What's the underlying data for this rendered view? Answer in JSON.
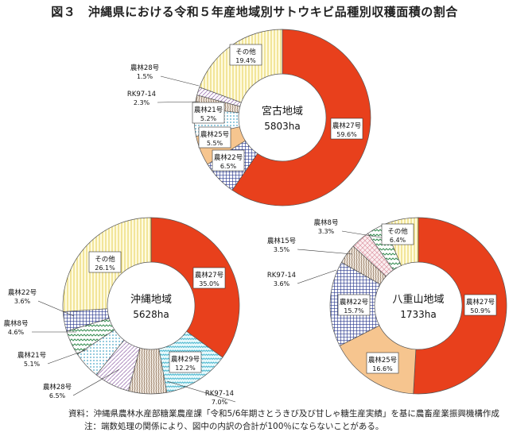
{
  "title": "図３　沖縄県における令和５年産地域別サトウキビ品種別収穫面積の割合",
  "notes": [
    "資料：沖縄県農林水産部糖業農産課「令和5/6年期さとうきび及び甘しゃ糖生産実績」を基に農畜産業振興機構作成",
    "注：端数処理の関係により、図中の内訳の合計が100％にならないことがある。"
  ],
  "colors": {
    "農林27号": "#e8401c",
    "農林22号": "#2b3a8f",
    "農林25号": "#f6c58f",
    "農林29号": "#5bc3d6",
    "農林21号": "#9fd3e6",
    "農林8号": "#3a8f55",
    "農林28号": "#b08ac0",
    "農林15号": "#e3a3ad",
    "RK97-14": "#a58b74",
    "その他": "#f3e27a"
  },
  "chart_data": [
    {
      "type": "pie",
      "donut": true,
      "region": "宮古地域",
      "area": "5803ha",
      "slices": [
        {
          "label": "農林27号",
          "pct": "59.6%",
          "value": 59.6
        },
        {
          "label": "農林22号",
          "pct": "6.5%",
          "value": 6.5
        },
        {
          "label": "農林25号",
          "pct": "5.5%",
          "value": 5.5
        },
        {
          "label": "農林21号",
          "pct": "5.2%",
          "value": 5.2
        },
        {
          "label": "RK97-14",
          "pct": "2.3%",
          "value": 2.3
        },
        {
          "label": "農林28号",
          "pct": "1.5%",
          "value": 1.5
        },
        {
          "label": "その他",
          "pct": "19.4%",
          "value": 19.4
        }
      ]
    },
    {
      "type": "pie",
      "donut": true,
      "region": "沖縄地域",
      "area": "5628ha",
      "slices": [
        {
          "label": "農林27号",
          "pct": "35.0%",
          "value": 35.0
        },
        {
          "label": "農林29号",
          "pct": "12.2%",
          "value": 12.2
        },
        {
          "label": "RK97-14",
          "pct": "7.0%",
          "value": 7.0
        },
        {
          "label": "農林28号",
          "pct": "6.5%",
          "value": 6.5
        },
        {
          "label": "農林21号",
          "pct": "5.1%",
          "value": 5.1
        },
        {
          "label": "農林8号",
          "pct": "4.6%",
          "value": 4.6
        },
        {
          "label": "農林22号",
          "pct": "3.6%",
          "value": 3.6
        },
        {
          "label": "その他",
          "pct": "26.1%",
          "value": 26.1
        }
      ]
    },
    {
      "type": "pie",
      "donut": true,
      "region": "八重山地域",
      "area": "1733ha",
      "slices": [
        {
          "label": "農林27号",
          "pct": "50.9%",
          "value": 50.9
        },
        {
          "label": "農林25号",
          "pct": "16.6%",
          "value": 16.6
        },
        {
          "label": "農林22号",
          "pct": "15.7%",
          "value": 15.7
        },
        {
          "label": "RK97-14",
          "pct": "3.6%",
          "value": 3.6
        },
        {
          "label": "農林15号",
          "pct": "3.5%",
          "value": 3.5
        },
        {
          "label": "農林8号",
          "pct": "3.3%",
          "value": 3.3
        },
        {
          "label": "その他",
          "pct": "6.4%",
          "value": 6.4
        }
      ]
    }
  ]
}
